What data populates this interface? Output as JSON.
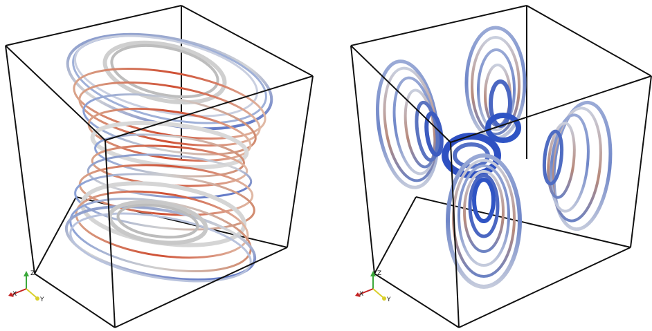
{
  "scenes": [
    {
      "id": "left",
      "description_type": "vortex-streamtubes-stacked",
      "axis_triad": {
        "x": "X",
        "y": "Y",
        "z": "Z"
      },
      "colormap": {
        "low": "#2c4fc0",
        "mid": "#d9d9d9",
        "high": "#d0482e"
      }
    },
    {
      "id": "right",
      "description_type": "vortex-streamtubes-four-lobes",
      "axis_triad": {
        "x": "X",
        "y": "Y",
        "z": "Z"
      },
      "colormap": {
        "low": "#2c4fc0",
        "mid": "#d9d9d9",
        "high": "#d0482e"
      }
    }
  ]
}
